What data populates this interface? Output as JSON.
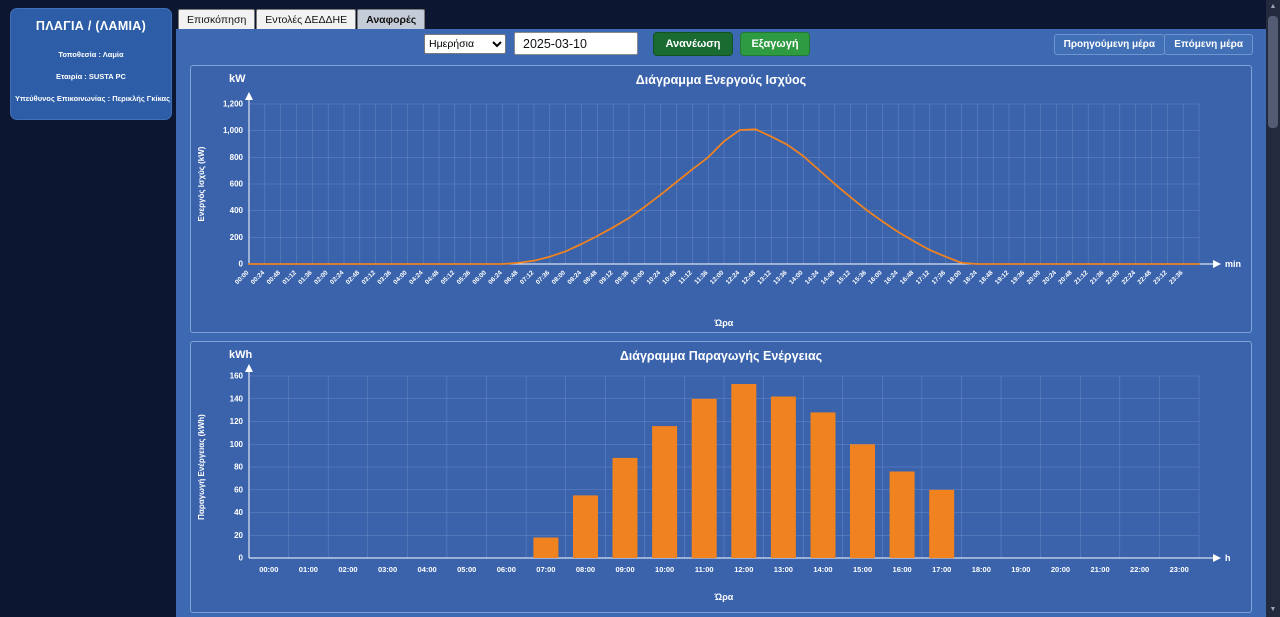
{
  "sidebar": {
    "title": "ΠΛΑΓΙΑ / (ΛΑΜΙΑ)",
    "lines": [
      "Τοποθεσία : Λαμία",
      "Εταιρία : SUSTA PC",
      "Υπεύθυνος Επικοινωνίας : Περικλής Γκίκας"
    ]
  },
  "tabs": [
    {
      "label": "Επισκόπηση",
      "active": false
    },
    {
      "label": "Εντολές ΔΕΔΔΗΕ",
      "active": false
    },
    {
      "label": "Αναφορές",
      "active": true
    }
  ],
  "toolbar": {
    "period_select": {
      "value": "Ημερήσια"
    },
    "date_value": "2025-03-10",
    "refresh_label": "Ανανέωση",
    "export_label": "Εξαγωγή",
    "prev_label": "Προηγούμενη μέρα",
    "next_label": "Επόμενη μέρα"
  },
  "icons": {
    "scroll_up_icon": "▲",
    "scroll_down_icon": "▼"
  },
  "colors": {
    "background": "#0c1631",
    "main_bg": "#3c69b1",
    "panel_bg": "#3a63ac",
    "panel_border": "#7fa3d6",
    "grid": "#9db9e2",
    "axis": "#ffffff",
    "series": "#f0821f",
    "bar": "#f0821f",
    "refresh_button": "#1a6b31",
    "export_button": "#2e9a41",
    "nav_button": "#4170b6",
    "sidebar_bg": "#2d5da6"
  },
  "chart_data": [
    {
      "type": "line",
      "title": "Διάγραμμα Ενεργούς Ισχύος",
      "unit": "kW",
      "xlabel": "Ώρα",
      "ylabel": "Ενεργός Ισχύς (kW)",
      "x_axis_end_label": "min",
      "ylim": [
        0,
        1200
      ],
      "x_interval_min": 24,
      "x_domain_min": 1440,
      "y_ticks": [
        "0",
        "200",
        "400",
        "600",
        "800",
        "1,000",
        "1,200"
      ],
      "y_tick_values": [
        0,
        200,
        400,
        600,
        800,
        1000,
        1200
      ],
      "x_ticks": [
        "00:00",
        "00:24",
        "00:48",
        "01:12",
        "01:36",
        "02:00",
        "02:24",
        "02:48",
        "03:12",
        "03:36",
        "04:00",
        "04:24",
        "04:48",
        "05:12",
        "05:36",
        "06:00",
        "06:24",
        "06:48",
        "07:12",
        "07:36",
        "08:00",
        "08:24",
        "08:48",
        "09:12",
        "09:36",
        "10:00",
        "10:24",
        "10:48",
        "11:12",
        "11:36",
        "12:00",
        "12:24",
        "12:48",
        "13:12",
        "13:36",
        "14:00",
        "14:24",
        "14:48",
        "15:12",
        "15:36",
        "16:00",
        "16:24",
        "16:48",
        "17:12",
        "17:36",
        "18:00",
        "18:24",
        "18:48",
        "19:12",
        "19:36",
        "20:00",
        "20:24",
        "20:48",
        "21:12",
        "21:36",
        "22:00",
        "22:24",
        "22:48",
        "23:12",
        "23:36"
      ],
      "values": [
        0,
        0,
        0,
        0,
        0,
        0,
        0,
        0,
        0,
        0,
        0,
        0,
        0,
        0,
        0,
        0,
        0,
        8,
        25,
        55,
        95,
        150,
        210,
        275,
        345,
        430,
        520,
        615,
        710,
        800,
        920,
        1005,
        1010,
        955,
        895,
        810,
        705,
        600,
        500,
        405,
        320,
        240,
        170,
        105,
        55,
        8,
        0,
        0,
        0,
        0,
        0,
        0,
        0,
        0,
        0,
        0,
        0,
        0,
        0,
        0,
        0
      ]
    },
    {
      "type": "bar",
      "title": "Διάγραμμα Παραγωγής Ενέργειας",
      "unit": "kWh",
      "xlabel": "Ώρα",
      "ylabel": "Παραγωγή Ενέργειας (kWh)",
      "x_axis_end_label": "h",
      "ylim": [
        0,
        160
      ],
      "y_ticks": [
        "0",
        "20",
        "40",
        "60",
        "80",
        "100",
        "120",
        "140",
        "160"
      ],
      "y_tick_values": [
        0,
        20,
        40,
        60,
        80,
        100,
        120,
        140,
        160
      ],
      "categories": [
        "00:00",
        "01:00",
        "02:00",
        "03:00",
        "04:00",
        "05:00",
        "06:00",
        "07:00",
        "08:00",
        "09:00",
        "10:00",
        "11:00",
        "12:00",
        "13:00",
        "14:00",
        "15:00",
        "16:00",
        "17:00",
        "18:00",
        "19:00",
        "20:00",
        "21:00",
        "22:00",
        "23:00"
      ],
      "values": [
        0,
        0,
        0,
        0,
        0,
        0,
        0,
        18,
        55,
        88,
        116,
        140,
        153,
        142,
        128,
        100,
        76,
        60,
        0,
        0,
        0,
        0,
        0,
        0
      ]
    }
  ]
}
